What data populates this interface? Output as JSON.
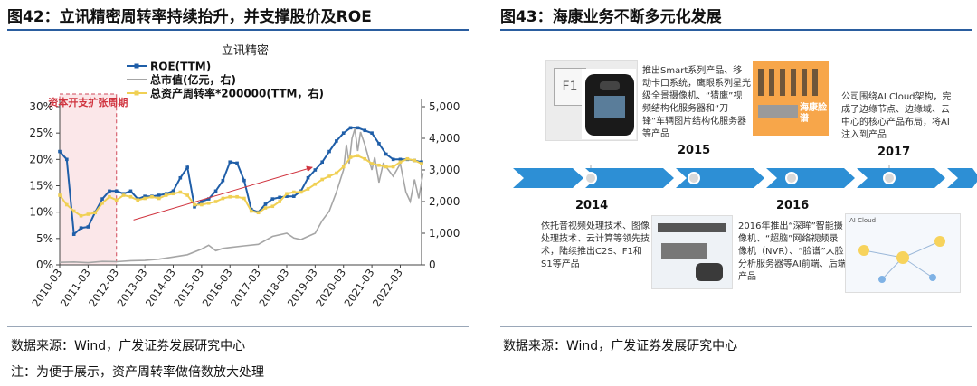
{
  "left": {
    "title": "图42：立讯精密周转率持续抬升，并支撑股价及ROE",
    "source": "数据来源：Wind，广发证券发展研究中心",
    "note": "注：为便于展示，资产周转率做倍数放大处理"
  },
  "right": {
    "title": "图43：海康业务不断多元化发展",
    "source": "数据来源：Wind，广发证券发展研究中心",
    "timeline": {
      "years": [
        "2014",
        "2015",
        "2016",
        "2017"
      ],
      "captions": {
        "c2015": "推出Smart系列产品、移动卡口系统，鹰眼系列星光级全景摄像机、“猎鹰”视频结构化服务器和“刀锋”车辆图片结构化服务器等产品",
        "c2017": "公司围绕AI Cloud架构，完成了边缘节点、边缘域、云中心的核心产品布局，将AI注入到产品",
        "c2014": "依托音视频处理技术、图像处理技术、云计算等领先技术，陆续推出C2S、F1和S1等产品",
        "c2016": "2016年推出“深眸”智能摄像机、“超脑”网络视频录像机（NVR）、“脸谱”人脸分析服务器等AI前端、后端产品"
      },
      "img_labels": {
        "f1": "F1",
        "lianpu": "海康脸谱",
        "ai_cloud": "AI Cloud"
      }
    }
  },
  "chart_data": {
    "type": "line",
    "title": "立讯精密",
    "legend_position": "top-left",
    "annotation": "资本开支扩张周期",
    "x_tick_labels": [
      "2010-03",
      "2011-03",
      "2012-03",
      "2013-03",
      "2014-03",
      "2015-03",
      "2016-03",
      "2017-03",
      "2018-03",
      "2019-03",
      "2020-03",
      "2021-03",
      "2022-03"
    ],
    "y_left": {
      "ticks": [
        "0%",
        "5%",
        "10%",
        "15%",
        "20%",
        "25%",
        "30%"
      ],
      "range": [
        0,
        30
      ]
    },
    "y_right": {
      "ticks": [
        "0",
        "1,000",
        "2,000",
        "3,000",
        "4,000",
        "5,000"
      ],
      "range": [
        0,
        5000
      ]
    },
    "series": [
      {
        "name": "ROE(TTM)",
        "axis": "left",
        "color": "#1f5ea8",
        "marker": "square",
        "x": [
          2010.0,
          2010.25,
          2010.5,
          2010.75,
          2011.0,
          2011.25,
          2011.5,
          2011.75,
          2012.0,
          2012.25,
          2012.5,
          2012.75,
          2013.0,
          2013.25,
          2013.5,
          2013.75,
          2014.0,
          2014.25,
          2014.5,
          2014.75,
          2015.0,
          2015.25,
          2015.5,
          2015.75,
          2016.0,
          2016.25,
          2016.5,
          2016.75,
          2017.0,
          2017.25,
          2017.5,
          2017.75,
          2018.0,
          2018.25,
          2018.5,
          2018.75,
          2019.0,
          2019.25,
          2019.5,
          2019.75,
          2020.0,
          2020.25,
          2020.5,
          2020.75,
          2021.0,
          2021.25,
          2021.5,
          2021.75,
          2022.0,
          2022.25,
          2022.5,
          2022.75
        ],
        "y": [
          21.5,
          20.0,
          5.8,
          7.0,
          7.2,
          10.0,
          12.5,
          14.0,
          14.0,
          13.5,
          14.0,
          12.5,
          13.0,
          13.0,
          13.2,
          13.5,
          14.0,
          16.5,
          18.5,
          11.0,
          12.0,
          12.5,
          14.0,
          16.0,
          19.5,
          19.3,
          16.0,
          10.5,
          10.0,
          11.5,
          12.5,
          12.8,
          13.0,
          13.0,
          14.0,
          16.5,
          18.0,
          19.5,
          21.5,
          23.5,
          25.0,
          26.0,
          26.0,
          25.5,
          25.0,
          23.0,
          21.0,
          20.0,
          20.0,
          20.0,
          19.8,
          19.5
        ]
      },
      {
        "name": "总市值(亿元，右)",
        "axis": "right",
        "color": "#a6a6a6",
        "x": [
          2010.0,
          2010.5,
          2011.0,
          2011.5,
          2012.0,
          2012.5,
          2013.0,
          2013.5,
          2014.0,
          2014.5,
          2015.0,
          2015.25,
          2015.5,
          2015.75,
          2016.0,
          2016.5,
          2017.0,
          2017.5,
          2018.0,
          2018.25,
          2018.5,
          2018.75,
          2019.0,
          2019.25,
          2019.5,
          2019.75,
          2020.0,
          2020.1,
          2020.2,
          2020.3,
          2020.4,
          2020.5,
          2020.6,
          2020.75,
          2021.0,
          2021.1,
          2021.25,
          2021.4,
          2021.5,
          2021.75,
          2022.0,
          2022.2,
          2022.35,
          2022.5,
          2022.65,
          2022.8
        ],
        "y": [
          80,
          90,
          70,
          110,
          100,
          130,
          140,
          180,
          250,
          320,
          500,
          620,
          450,
          520,
          550,
          600,
          650,
          900,
          1000,
          850,
          800,
          900,
          1000,
          1400,
          1700,
          2300,
          3000,
          3800,
          3200,
          4000,
          4300,
          3600,
          4200,
          3800,
          3000,
          3400,
          2600,
          3200,
          3100,
          2800,
          3200,
          2300,
          2000,
          2700,
          2100,
          2900
        ]
      },
      {
        "name": "总资产周转率*200000(TTM，右)",
        "axis": "right",
        "color": "#f0d054",
        "marker": "square",
        "x": [
          2010.0,
          2010.25,
          2010.5,
          2010.75,
          2011.0,
          2011.25,
          2011.5,
          2011.75,
          2012.0,
          2012.25,
          2012.5,
          2012.75,
          2013.0,
          2013.25,
          2013.5,
          2013.75,
          2014.0,
          2014.25,
          2014.5,
          2014.75,
          2015.0,
          2015.25,
          2015.5,
          2015.75,
          2016.0,
          2016.25,
          2016.5,
          2016.75,
          2017.0,
          2017.25,
          2017.5,
          2017.75,
          2018.0,
          2018.25,
          2018.5,
          2018.75,
          2019.0,
          2019.25,
          2019.5,
          2019.75,
          2020.0,
          2020.25,
          2020.5,
          2020.75,
          2021.0,
          2021.25,
          2021.5,
          2021.75,
          2022.0,
          2022.25,
          2022.5,
          2022.75
        ],
        "y": [
          2200,
          1900,
          1700,
          1550,
          1600,
          1650,
          1950,
          2150,
          2050,
          2200,
          2150,
          2050,
          2100,
          2150,
          2100,
          2200,
          2250,
          2300,
          2200,
          1900,
          1900,
          1950,
          2000,
          2100,
          2150,
          2150,
          2100,
          1700,
          1650,
          1800,
          1850,
          2000,
          2250,
          2300,
          2300,
          2400,
          2550,
          2700,
          2800,
          2900,
          3100,
          3400,
          3450,
          3350,
          3200,
          3150,
          3100,
          3100,
          3250,
          3350,
          3300,
          3200
        ]
      }
    ]
  }
}
